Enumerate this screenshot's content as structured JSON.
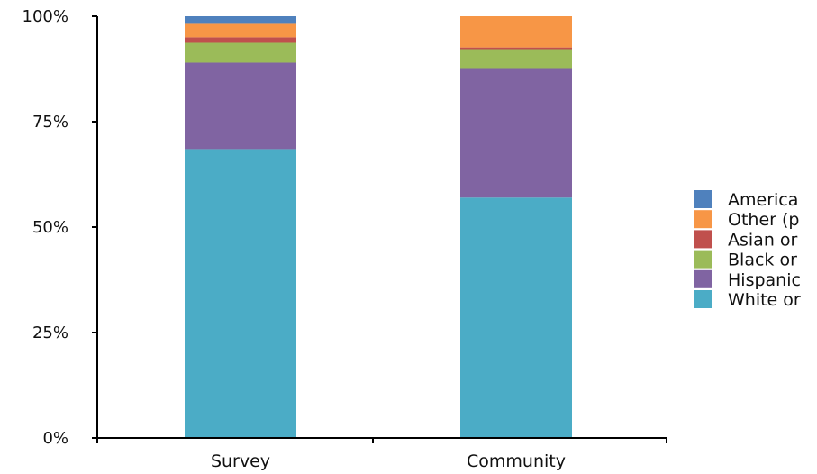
{
  "chart_data": {
    "type": "bar",
    "stacked": true,
    "categories": [
      "Survey",
      "Community"
    ],
    "ylim": [
      0,
      100
    ],
    "yticks": [
      "0%",
      "25%",
      "50%",
      "75%",
      "100%"
    ],
    "ytick_values": [
      0,
      25,
      50,
      75,
      100
    ],
    "legend_position": "right",
    "series": [
      {
        "name": "White or",
        "color": "#4bacc6",
        "values": [
          68.5,
          57
        ]
      },
      {
        "name": "Hispanic",
        "color": "#8064a2",
        "values": [
          20.5,
          30.5
        ]
      },
      {
        "name": "Black or",
        "color": "#9bbb59",
        "values": [
          4.7,
          4.7
        ]
      },
      {
        "name": "Asian or",
        "color": "#c0504d",
        "values": [
          1.3,
          0.4
        ]
      },
      {
        "name": "Other (p",
        "color": "#f79646",
        "values": [
          3.2,
          7.4
        ]
      },
      {
        "name": "America",
        "color": "#4f81bd",
        "values": [
          1.8,
          0
        ]
      }
    ]
  }
}
